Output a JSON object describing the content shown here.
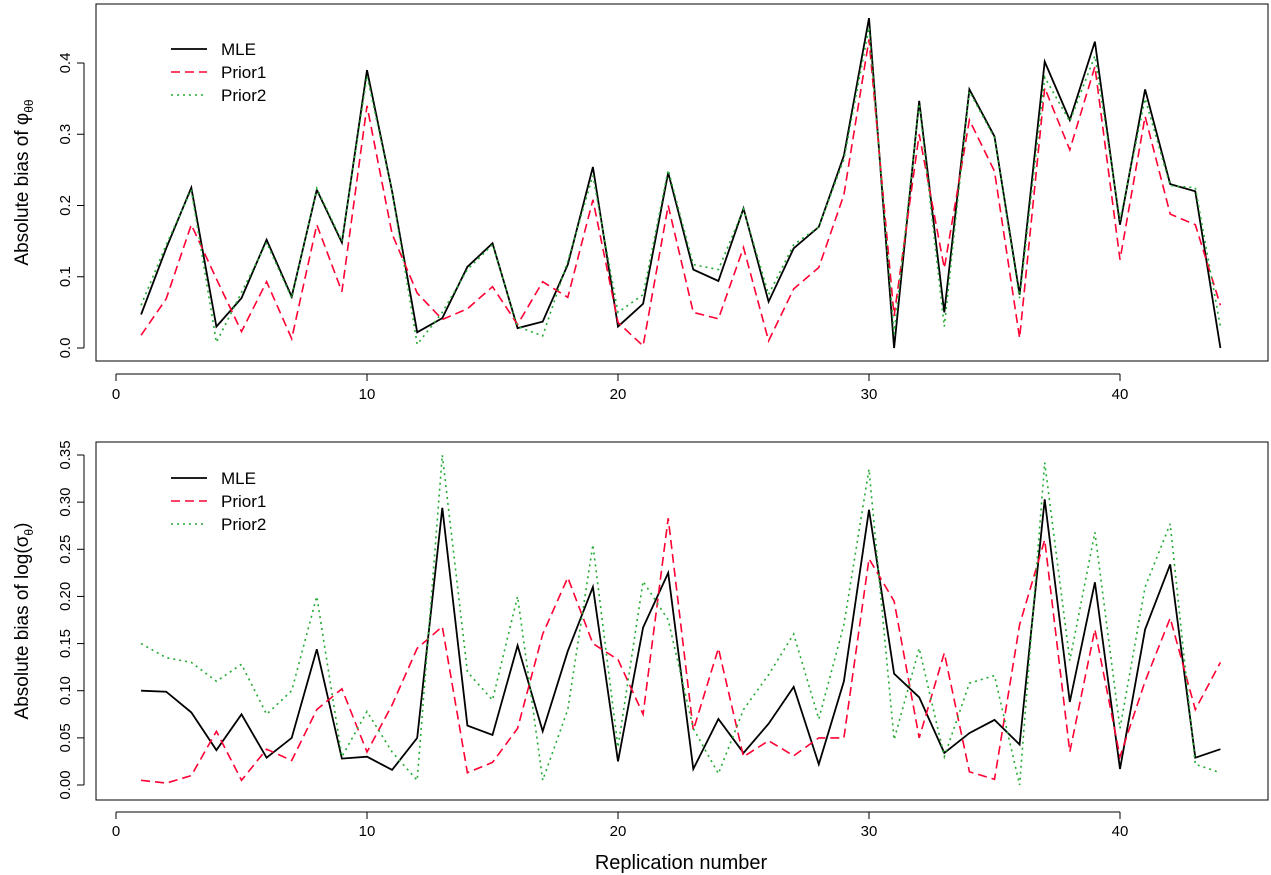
{
  "figure": {
    "xlabel": "Replication number"
  },
  "colors": {
    "MLE": "#000000",
    "Prior1": "#ff0033",
    "Prior2": "#22aa33",
    "axis": "#000000"
  },
  "chart_data": [
    {
      "type": "line",
      "ylabel_main": "Absolute bias of ",
      "ylabel_symbol": "φ",
      "ylabel_subscript": "θθ",
      "ylabel_suffix": "",
      "xlim": [
        0,
        45
      ],
      "ylim": [
        0,
        0.46
      ],
      "xticks": [
        0,
        10,
        20,
        30,
        40
      ],
      "yticks": [
        0.0,
        0.1,
        0.2,
        0.3,
        0.4
      ],
      "ytick_labels": [
        "0.0",
        "0.1",
        "0.2",
        "0.3",
        "0.4"
      ],
      "legend_position": "top-left",
      "x": [
        1,
        2,
        3,
        4,
        5,
        6,
        7,
        8,
        9,
        10,
        11,
        12,
        13,
        14,
        15,
        16,
        17,
        18,
        19,
        20,
        21,
        22,
        23,
        24,
        25,
        26,
        27,
        28,
        29,
        30,
        31,
        32,
        33,
        34,
        35,
        36,
        37,
        38,
        39,
        40,
        41,
        42,
        43,
        44
      ],
      "series": [
        {
          "name": "MLE",
          "style": "solid",
          "values": [
            0.047,
            0.14,
            0.225,
            0.03,
            0.07,
            0.152,
            0.072,
            0.222,
            0.148,
            0.39,
            0.22,
            0.022,
            0.042,
            0.114,
            0.147,
            0.028,
            0.037,
            0.117,
            0.254,
            0.03,
            0.062,
            0.246,
            0.11,
            0.094,
            0.196,
            0.065,
            0.14,
            0.17,
            0.27,
            0.463,
            0.0,
            0.347,
            0.05,
            0.363,
            0.297,
            0.075,
            0.402,
            0.32,
            0.43,
            0.173,
            0.363,
            0.23,
            0.22,
            0.0
          ]
        },
        {
          "name": "Prior1",
          "style": "dashed",
          "values": [
            0.018,
            0.069,
            0.173,
            0.097,
            0.023,
            0.093,
            0.013,
            0.173,
            0.079,
            0.34,
            0.16,
            0.077,
            0.04,
            0.055,
            0.086,
            0.033,
            0.093,
            0.071,
            0.208,
            0.036,
            0.003,
            0.2,
            0.05,
            0.041,
            0.141,
            0.01,
            0.083,
            0.113,
            0.215,
            0.433,
            0.045,
            0.3,
            0.112,
            0.32,
            0.248,
            0.014,
            0.365,
            0.278,
            0.395,
            0.124,
            0.325,
            0.188,
            0.173,
            0.06
          ]
        },
        {
          "name": "Prior2",
          "style": "dotted",
          "values": [
            0.06,
            0.145,
            0.222,
            0.008,
            0.078,
            0.148,
            0.07,
            0.224,
            0.15,
            0.382,
            0.22,
            0.005,
            0.05,
            0.11,
            0.145,
            0.03,
            0.017,
            0.122,
            0.242,
            0.05,
            0.075,
            0.25,
            0.117,
            0.11,
            0.195,
            0.075,
            0.145,
            0.17,
            0.265,
            0.45,
            0.02,
            0.343,
            0.03,
            0.36,
            0.295,
            0.07,
            0.38,
            0.318,
            0.41,
            0.18,
            0.35,
            0.228,
            0.225,
            0.03
          ]
        }
      ]
    },
    {
      "type": "line",
      "ylabel_main": "Absolute bias of log(",
      "ylabel_symbol": "σ",
      "ylabel_subscript": "θ",
      "ylabel_suffix": ")",
      "xlim": [
        0,
        45
      ],
      "ylim": [
        0,
        0.355
      ],
      "xticks": [
        0,
        10,
        20,
        30,
        40
      ],
      "yticks": [
        0.0,
        0.05,
        0.1,
        0.15,
        0.2,
        0.25,
        0.3,
        0.35
      ],
      "ytick_labels": [
        "0.00",
        "0.05",
        "0.10",
        "0.15",
        "0.20",
        "0.25",
        "0.30",
        "0.35"
      ],
      "legend_position": "top-left",
      "x": [
        1,
        2,
        3,
        4,
        5,
        6,
        7,
        8,
        9,
        10,
        11,
        12,
        13,
        14,
        15,
        16,
        17,
        18,
        19,
        20,
        21,
        22,
        23,
        24,
        25,
        26,
        27,
        28,
        29,
        30,
        31,
        32,
        33,
        34,
        35,
        36,
        37,
        38,
        39,
        40,
        41,
        42,
        43,
        44
      ],
      "series": [
        {
          "name": "MLE",
          "style": "solid",
          "values": [
            0.1,
            0.099,
            0.077,
            0.037,
            0.075,
            0.029,
            0.05,
            0.144,
            0.028,
            0.03,
            0.016,
            0.05,
            0.294,
            0.063,
            0.053,
            0.148,
            0.057,
            0.142,
            0.21,
            0.025,
            0.167,
            0.225,
            0.017,
            0.07,
            0.034,
            0.065,
            0.104,
            0.022,
            0.11,
            0.292,
            0.118,
            0.093,
            0.034,
            0.055,
            0.069,
            0.043,
            0.303,
            0.088,
            0.215,
            0.017,
            0.165,
            0.234,
            0.029,
            0.038
          ]
        },
        {
          "name": "Prior1",
          "style": "dashed",
          "values": [
            0.005,
            0.002,
            0.01,
            0.057,
            0.005,
            0.038,
            0.026,
            0.08,
            0.102,
            0.035,
            0.085,
            0.145,
            0.168,
            0.013,
            0.024,
            0.06,
            0.16,
            0.22,
            0.15,
            0.133,
            0.075,
            0.283,
            0.058,
            0.145,
            0.03,
            0.047,
            0.031,
            0.05,
            0.05,
            0.24,
            0.195,
            0.05,
            0.14,
            0.014,
            0.006,
            0.17,
            0.26,
            0.035,
            0.165,
            0.03,
            0.11,
            0.177,
            0.08,
            0.13
          ]
        },
        {
          "name": "Prior2",
          "style": "dotted",
          "values": [
            0.15,
            0.135,
            0.13,
            0.11,
            0.128,
            0.075,
            0.1,
            0.2,
            0.03,
            0.078,
            0.035,
            0.005,
            0.35,
            0.12,
            0.09,
            0.2,
            0.005,
            0.08,
            0.255,
            0.04,
            0.216,
            0.175,
            0.06,
            0.012,
            0.08,
            0.117,
            0.16,
            0.07,
            0.17,
            0.335,
            0.048,
            0.145,
            0.03,
            0.108,
            0.116,
            0.0,
            0.342,
            0.132,
            0.268,
            0.06,
            0.21,
            0.277,
            0.022,
            0.013
          ]
        }
      ]
    }
  ]
}
